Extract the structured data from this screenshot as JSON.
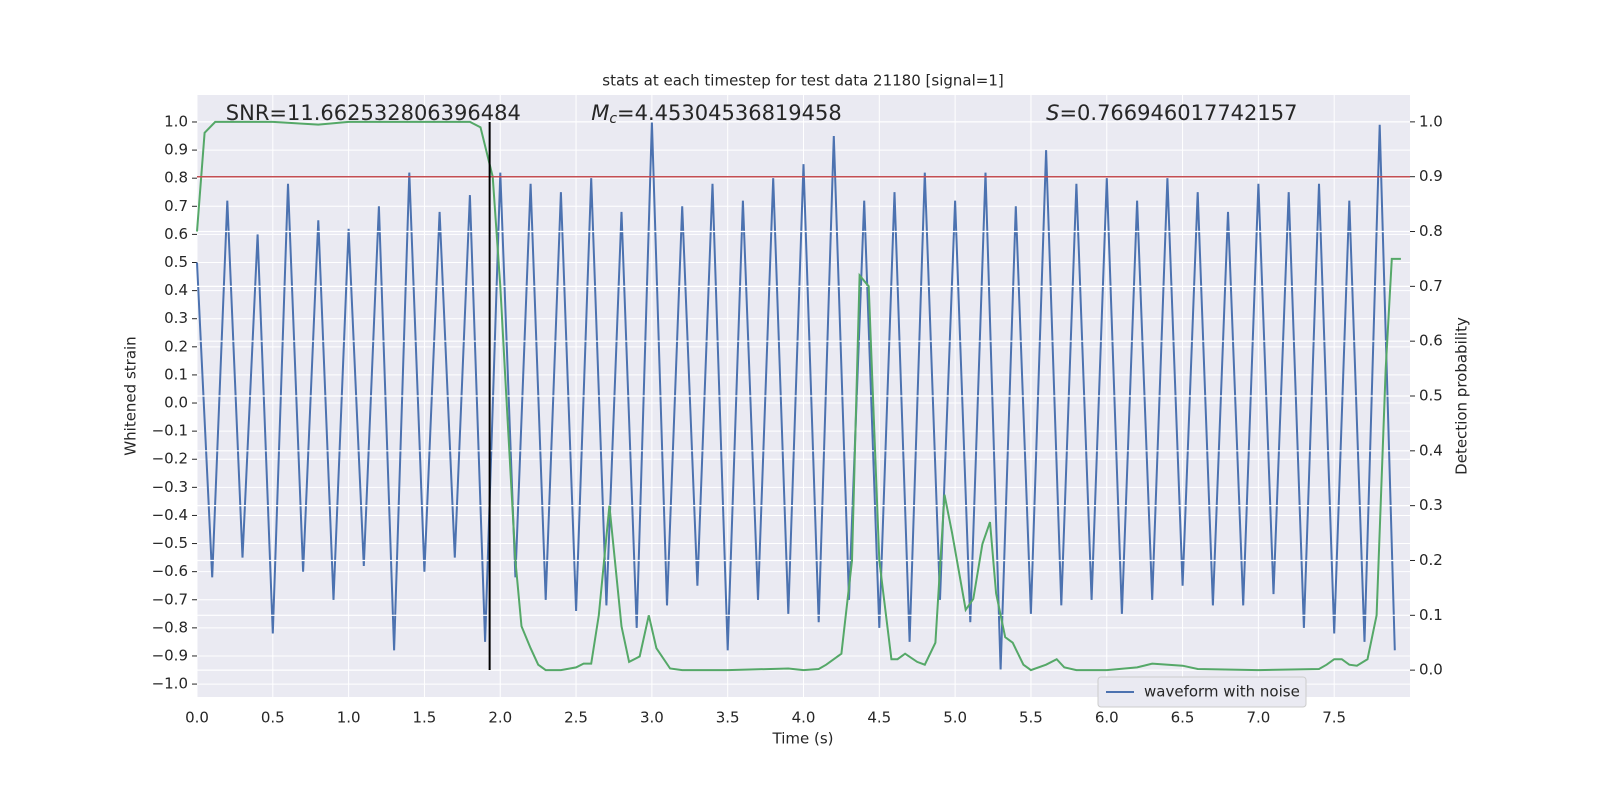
{
  "chart_data": {
    "type": "line",
    "title": "stats at each timestep for test data 21180 [signal=1]",
    "xlabel": "Time (s)",
    "ylabel": "Whitened strain",
    "y2label": "Detection probability",
    "xlim": [
      0,
      8
    ],
    "ylim": [
      -1.046,
      1.096
    ],
    "y2lim": [
      -0.049,
      1.049
    ],
    "xticks": [
      {
        "value": 0,
        "label": "0.0"
      },
      {
        "value": 0.5,
        "label": "0.5"
      },
      {
        "value": 1,
        "label": "1.0"
      },
      {
        "value": 1.5,
        "label": "1.5"
      },
      {
        "value": 2,
        "label": "2.0"
      },
      {
        "value": 2.5,
        "label": "2.5"
      },
      {
        "value": 3,
        "label": "3.0"
      },
      {
        "value": 3.5,
        "label": "3.5"
      },
      {
        "value": 4,
        "label": "4.0"
      },
      {
        "value": 4.5,
        "label": "4.5"
      },
      {
        "value": 5,
        "label": "5.0"
      },
      {
        "value": 5.5,
        "label": "5.5"
      },
      {
        "value": 6,
        "label": "6.0"
      },
      {
        "value": 6.5,
        "label": "6.5"
      },
      {
        "value": 7,
        "label": "7.0"
      },
      {
        "value": 7.5,
        "label": "7.5"
      }
    ],
    "yticks": [
      {
        "value": 1,
        "label": "1.0"
      },
      {
        "value": 0.9,
        "label": "0.9"
      },
      {
        "value": 0.8,
        "label": "0.8"
      },
      {
        "value": 0.7,
        "label": "0.7"
      },
      {
        "value": 0.6,
        "label": "0.6"
      },
      {
        "value": 0.5,
        "label": "0.5"
      },
      {
        "value": 0.4,
        "label": "0.4"
      },
      {
        "value": 0.3,
        "label": "0.3"
      },
      {
        "value": 0.2,
        "label": "0.2"
      },
      {
        "value": 0.1,
        "label": "0.1"
      },
      {
        "value": 0,
        "label": "0.0"
      },
      {
        "value": -0.1,
        "label": "−0.1"
      },
      {
        "value": -0.2,
        "label": "−0.2"
      },
      {
        "value": -0.3,
        "label": "−0.3"
      },
      {
        "value": -0.4,
        "label": "−0.4"
      },
      {
        "value": -0.5,
        "label": "−0.5"
      },
      {
        "value": -0.6,
        "label": "−0.6"
      },
      {
        "value": -0.7,
        "label": "−0.7"
      },
      {
        "value": -0.8,
        "label": "−0.8"
      },
      {
        "value": -0.9,
        "label": "−0.9"
      },
      {
        "value": -1,
        "label": "−1.0"
      }
    ],
    "y2ticks": [
      {
        "value": 1,
        "label": "1.0"
      },
      {
        "value": 0.9,
        "label": "0.9"
      },
      {
        "value": 0.8,
        "label": "0.8"
      },
      {
        "value": 0.7,
        "label": "0.7"
      },
      {
        "value": 0.6,
        "label": "0.6"
      },
      {
        "value": 0.5,
        "label": "0.5"
      },
      {
        "value": 0.4,
        "label": "0.4"
      },
      {
        "value": 0.3,
        "label": "0.3"
      },
      {
        "value": 0.2,
        "label": "0.2"
      },
      {
        "value": 0.1,
        "label": "0.1"
      },
      {
        "value": 0,
        "label": "0.0"
      }
    ],
    "grid": true,
    "legend": "lower right",
    "series": [
      {
        "name": "waveform with noise",
        "color": "#4c72b0",
        "x": [
          0,
          0.1,
          0.2,
          0.3,
          0.4,
          0.5,
          0.6,
          0.7,
          0.8,
          0.9,
          1,
          1.1,
          1.2,
          1.3,
          1.4,
          1.5,
          1.6,
          1.7,
          1.8,
          1.9,
          2,
          2.1,
          2.2,
          2.3,
          2.4,
          2.5,
          2.6,
          2.7,
          2.8,
          2.9,
          3,
          3.1,
          3.2,
          3.3,
          3.4,
          3.5,
          3.6,
          3.7,
          3.8,
          3.9,
          4,
          4.1,
          4.2,
          4.3,
          4.4,
          4.5,
          4.6,
          4.7,
          4.8,
          4.9,
          5,
          5.1,
          5.2,
          5.3,
          5.4,
          5.5,
          5.6,
          5.7,
          5.8,
          5.9,
          6,
          6.1,
          6.2,
          6.3,
          6.4,
          6.5,
          6.6,
          6.7,
          6.8,
          6.9,
          7,
          7.1,
          7.2,
          7.3,
          7.4,
          7.5,
          7.6,
          7.7,
          7.8,
          7.9
        ],
        "values": [
          0.5,
          -0.62,
          0.72,
          -0.55,
          0.6,
          -0.82,
          0.78,
          -0.6,
          0.65,
          -0.7,
          0.62,
          -0.58,
          0.7,
          -0.88,
          0.82,
          -0.6,
          0.68,
          -0.55,
          0.74,
          -0.85,
          0.82,
          -0.62,
          0.78,
          -0.7,
          0.75,
          -0.74,
          0.8,
          -0.72,
          0.68,
          -0.8,
          1.0,
          -0.72,
          0.7,
          -0.65,
          0.78,
          -0.88,
          0.72,
          -0.7,
          0.8,
          -0.75,
          0.85,
          -0.78,
          0.95,
          -0.7,
          0.72,
          -0.8,
          0.75,
          -0.85,
          0.82,
          -0.7,
          0.72,
          -0.78,
          0.82,
          -0.95,
          0.7,
          -0.75,
          0.9,
          -0.72,
          0.78,
          -0.7,
          0.8,
          -0.75,
          0.72,
          -0.7,
          0.8,
          -0.65,
          0.75,
          -0.72,
          0.68,
          -0.72,
          0.78,
          -0.68,
          0.75,
          -0.8,
          0.78,
          -0.82,
          0.72,
          -0.85,
          0.99,
          -0.88
        ]
      },
      {
        "color": "#55a868",
        "axis": "y2",
        "x": [
          0,
          0.05,
          0.12,
          0.5,
          0.8,
          1.0,
          1.5,
          1.8,
          1.87,
          1.95,
          2.0,
          2.05,
          2.1,
          2.14,
          2.2,
          2.25,
          2.3,
          2.4,
          2.5,
          2.55,
          2.6,
          2.65,
          2.72,
          2.8,
          2.85,
          2.92,
          2.98,
          3.03,
          3.12,
          3.2,
          3.5,
          3.9,
          4.0,
          4.1,
          4.15,
          4.25,
          4.32,
          4.37,
          4.43,
          4.5,
          4.58,
          4.62,
          4.67,
          4.75,
          4.8,
          4.87,
          4.93,
          4.98,
          5.07,
          5.12,
          5.18,
          5.23,
          5.27,
          5.33,
          5.38,
          5.45,
          5.5,
          5.6,
          5.67,
          5.72,
          5.8,
          6.0,
          6.2,
          6.3,
          6.5,
          6.6,
          7.0,
          7.4,
          7.45,
          7.5,
          7.55,
          7.6,
          7.65,
          7.72,
          7.78,
          7.84,
          7.88,
          7.94
        ],
        "values": [
          0.8,
          0.98,
          1.0,
          1.0,
          0.995,
          1.0,
          1.0,
          1.0,
          0.99,
          0.9,
          0.7,
          0.45,
          0.2,
          0.08,
          0.04,
          0.01,
          0.0,
          0.0,
          0.005,
          0.012,
          0.012,
          0.1,
          0.3,
          0.08,
          0.015,
          0.025,
          0.1,
          0.04,
          0.003,
          0.0,
          0.0,
          0.003,
          0.0,
          0.002,
          0.01,
          0.03,
          0.2,
          0.72,
          0.7,
          0.2,
          0.02,
          0.02,
          0.03,
          0.015,
          0.01,
          0.05,
          0.32,
          0.25,
          0.11,
          0.13,
          0.23,
          0.27,
          0.14,
          0.06,
          0.05,
          0.01,
          0.0,
          0.01,
          0.02,
          0.005,
          0.0,
          0.0,
          0.005,
          0.012,
          0.008,
          0.002,
          0.0,
          0.002,
          0.01,
          0.02,
          0.02,
          0.01,
          0.008,
          0.02,
          0.1,
          0.55,
          0.75,
          0.75
        ]
      }
    ],
    "hline": {
      "y2": 0.9,
      "color": "#c44e52"
    },
    "vline": {
      "x": 1.93,
      "ymin": -0.95,
      "ymax": 1.0,
      "color": "#000000"
    },
    "annotations": [
      {
        "x": 0.19,
        "text": "SNR=11.662532806396484"
      },
      {
        "x": 2.6,
        "symbol": "M",
        "subscript": "c",
        "text": "=4.45304536819458"
      },
      {
        "x": 5.6,
        "symbol": "S",
        "text": "=0.766946017742157"
      }
    ]
  }
}
